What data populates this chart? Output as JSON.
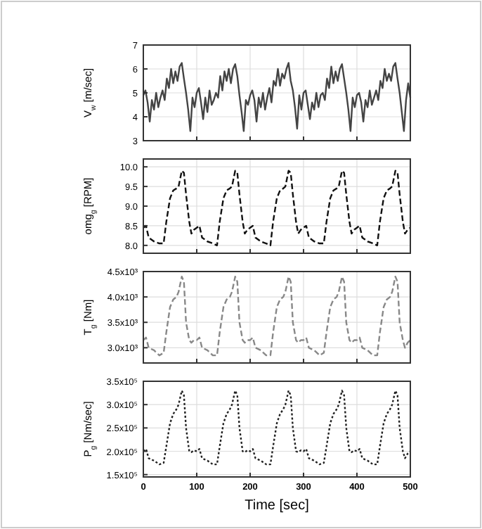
{
  "chart_data": [
    {
      "type": "line",
      "ylabel": "V$_{w}$ [m/sec]",
      "xlim": [
        0,
        500
      ],
      "xticks": [
        0,
        100,
        200,
        300,
        400,
        500
      ],
      "ylim": [
        3,
        7
      ],
      "yticks": [
        3,
        4,
        5,
        6,
        7
      ],
      "grid": true,
      "tick_labels": "y",
      "line_style": "solid",
      "x": [
        0,
        4,
        8,
        12,
        16,
        20,
        24,
        28,
        32,
        36,
        40,
        44,
        48,
        52,
        56,
        60,
        64,
        68,
        72,
        76,
        80,
        84,
        88,
        92,
        96,
        100,
        104,
        108,
        112,
        116,
        120,
        124,
        128,
        132,
        136,
        140,
        144,
        148,
        152,
        156,
        160,
        164,
        168,
        172,
        176,
        180,
        184,
        188,
        192,
        196,
        200,
        204,
        208,
        212,
        216,
        220,
        224,
        228,
        232,
        236,
        240,
        244,
        248,
        252,
        256,
        260,
        264,
        268,
        272,
        276,
        280,
        284,
        288,
        292,
        296,
        300,
        304,
        308,
        312,
        316,
        320,
        324,
        328,
        332,
        336,
        340,
        344,
        348,
        352,
        356,
        360,
        364,
        368,
        372,
        376,
        380,
        384,
        388,
        392,
        396,
        400,
        404,
        408,
        412,
        416,
        420,
        424,
        428,
        432,
        436,
        440,
        444,
        448,
        452,
        456,
        460,
        464,
        468,
        472,
        476,
        480,
        484,
        488,
        492,
        496,
        500
      ],
      "series": [
        {
          "color": "#444444",
          "values": [
            4.9,
            5.1,
            4.6,
            3.8,
            4.7,
            4.3,
            5.0,
            4.4,
            4.8,
            5.1,
            4.7,
            5.6,
            5.2,
            6.0,
            5.4,
            5.9,
            5.5,
            6.1,
            6.25,
            5.6,
            5.0,
            4.3,
            3.4,
            4.8,
            4.4,
            5.0,
            5.2,
            4.6,
            3.9,
            4.8,
            4.2,
            5.1,
            4.5,
            4.7,
            5.0,
            4.8,
            5.7,
            5.1,
            5.9,
            5.5,
            6.0,
            5.4,
            6.0,
            6.2,
            5.7,
            4.9,
            4.2,
            3.4,
            4.7,
            4.5,
            4.9,
            5.1,
            4.7,
            3.8,
            4.8,
            4.4,
            5.0,
            4.3,
            4.8,
            5.2,
            4.6,
            5.5,
            5.3,
            6.0,
            5.3,
            5.8,
            5.6,
            6.0,
            6.25,
            5.5,
            5.1,
            4.4,
            3.5,
            4.9,
            4.3,
            5.0,
            5.1,
            4.5,
            3.9,
            4.6,
            4.3,
            5.0,
            4.4,
            4.9,
            5.0,
            4.7,
            5.6,
            5.2,
            6.1,
            5.4,
            5.9,
            5.5,
            6.0,
            6.2,
            5.6,
            5.0,
            4.3,
            3.4,
            4.8,
            4.4,
            4.9,
            5.0,
            4.6,
            3.8,
            4.7,
            4.4,
            5.1,
            4.5,
            4.8,
            5.1,
            4.7,
            5.5,
            5.2,
            6.0,
            5.5,
            5.8,
            5.5,
            6.1,
            6.25,
            5.6,
            5.0,
            4.2,
            3.4,
            4.7,
            5.4,
            4.8
          ]
        }
      ]
    },
    {
      "type": "line",
      "ylabel": "omg$_{g}$ [RPM]",
      "xlim": [
        0,
        500
      ],
      "xticks": [
        0,
        100,
        200,
        300,
        400,
        500
      ],
      "ylim": [
        7.8,
        10.2
      ],
      "yticks": [
        {
          "value": 8,
          "label": "8.0"
        },
        {
          "value": 8.5,
          "label": "8.5"
        },
        {
          "value": 9,
          "label": "9.0"
        },
        {
          "value": 9.5,
          "label": "9.5"
        },
        {
          "value": 10,
          "label": "10.0"
        }
      ],
      "grid": true,
      "tick_labels": "y",
      "line_style": "dashed",
      "x": [
        0,
        5,
        10,
        20,
        30,
        38,
        43,
        50,
        56,
        62,
        66,
        72,
        76,
        80,
        86,
        90,
        95,
        100,
        105,
        110,
        120,
        130,
        138,
        143,
        150,
        156,
        162,
        166,
        172,
        176,
        180,
        186,
        190,
        195,
        200,
        205,
        210,
        220,
        230,
        238,
        243,
        250,
        256,
        262,
        266,
        272,
        276,
        280,
        286,
        290,
        295,
        300,
        305,
        310,
        320,
        330,
        338,
        343,
        350,
        356,
        362,
        366,
        372,
        376,
        380,
        386,
        390,
        395,
        400,
        405,
        410,
        420,
        430,
        438,
        443,
        450,
        456,
        462,
        466,
        472,
        476,
        480,
        486,
        490,
        495,
        500
      ],
      "series": [
        {
          "color": "#111111",
          "values": [
            8.45,
            8.5,
            8.2,
            8.1,
            8.05,
            8.05,
            8.6,
            9.2,
            9.4,
            9.45,
            9.5,
            9.9,
            9.85,
            9.3,
            8.6,
            8.3,
            8.4,
            8.45,
            8.5,
            8.2,
            8.1,
            8.05,
            8.0,
            8.6,
            9.2,
            9.4,
            9.45,
            9.5,
            9.9,
            9.85,
            9.3,
            8.6,
            8.3,
            8.4,
            8.45,
            8.5,
            8.2,
            8.1,
            8.05,
            8.0,
            8.6,
            9.2,
            9.4,
            9.45,
            9.5,
            9.9,
            9.85,
            9.3,
            8.6,
            8.3,
            8.4,
            8.45,
            8.5,
            8.2,
            8.1,
            8.05,
            8.05,
            8.6,
            9.2,
            9.4,
            9.45,
            9.5,
            9.9,
            9.85,
            9.3,
            8.6,
            8.3,
            8.4,
            8.45,
            8.5,
            8.2,
            8.1,
            8.05,
            8.0,
            8.6,
            9.2,
            9.4,
            9.45,
            9.5,
            9.9,
            9.85,
            9.3,
            8.6,
            8.3,
            8.4,
            8.45
          ]
        }
      ]
    },
    {
      "type": "line",
      "ylabel": "T$_{g}$ [Nm]",
      "xlim": [
        0,
        500
      ],
      "xticks": [
        0,
        100,
        200,
        300,
        400,
        500
      ],
      "ylim": [
        2700,
        4500
      ],
      "yticks": [
        {
          "value": 3000,
          "label": "3.0x10³"
        },
        {
          "value": 3500,
          "label": "3.5x10³"
        },
        {
          "value": 4000,
          "label": "4.0x10³"
        },
        {
          "value": 4500,
          "label": "4.5x10³"
        }
      ],
      "grid": true,
      "tick_labels": "y",
      "line_style": "dashed",
      "x": [
        0,
        5,
        10,
        20,
        30,
        38,
        43,
        50,
        56,
        62,
        66,
        72,
        76,
        80,
        86,
        90,
        95,
        100,
        105,
        110,
        120,
        130,
        138,
        143,
        150,
        156,
        162,
        166,
        172,
        176,
        180,
        186,
        190,
        195,
        200,
        205,
        210,
        220,
        230,
        238,
        243,
        250,
        256,
        262,
        266,
        272,
        276,
        280,
        286,
        290,
        295,
        300,
        305,
        310,
        320,
        330,
        338,
        343,
        350,
        356,
        362,
        366,
        372,
        376,
        380,
        386,
        390,
        395,
        400,
        405,
        410,
        420,
        430,
        438,
        443,
        450,
        456,
        462,
        466,
        472,
        476,
        480,
        486,
        490,
        495,
        500
      ],
      "series": [
        {
          "color": "#888888",
          "values": [
            3150,
            3200,
            3000,
            2950,
            2850,
            2900,
            3300,
            3800,
            3950,
            4000,
            4100,
            4400,
            4300,
            3500,
            3150,
            3100,
            3150,
            3150,
            3200,
            3000,
            2950,
            2850,
            2850,
            3300,
            3800,
            3950,
            4000,
            4100,
            4400,
            4300,
            3500,
            3150,
            3100,
            3150,
            3150,
            3200,
            3000,
            2950,
            2850,
            2850,
            3300,
            3800,
            3950,
            4000,
            4100,
            4400,
            4300,
            3500,
            3150,
            3100,
            3150,
            3150,
            3200,
            3000,
            2950,
            2850,
            2900,
            3300,
            3800,
            3950,
            4000,
            4100,
            4400,
            4300,
            3500,
            3150,
            3100,
            3150,
            3150,
            3200,
            3000,
            2950,
            2850,
            2850,
            3300,
            3800,
            3950,
            4000,
            4100,
            4400,
            4300,
            3500,
            3150,
            3000,
            3100,
            3150
          ]
        }
      ]
    },
    {
      "type": "line",
      "xlabel": "Time [sec]",
      "ylabel": "P$_{g}$ [Nm/sec]",
      "xlim": [
        0,
        500
      ],
      "xticks": [
        0,
        100,
        200,
        300,
        400,
        500
      ],
      "ylim": [
        145000,
        350000
      ],
      "yticks": [
        {
          "value": 150000,
          "label": "1.5x10⁵"
        },
        {
          "value": 200000,
          "label": "2.0x10⁵"
        },
        {
          "value": 250000,
          "label": "2.5x10⁵"
        },
        {
          "value": 300000,
          "label": "3.0x10⁵"
        },
        {
          "value": 350000,
          "label": "3.5x10⁵"
        }
      ],
      "grid": true,
      "line_style": "dotted",
      "x": [
        0,
        5,
        10,
        20,
        30,
        38,
        43,
        50,
        56,
        62,
        66,
        72,
        76,
        80,
        86,
        90,
        95,
        100,
        105,
        110,
        120,
        130,
        138,
        143,
        150,
        156,
        162,
        166,
        172,
        176,
        180,
        186,
        190,
        195,
        200,
        205,
        210,
        220,
        230,
        238,
        243,
        250,
        256,
        262,
        266,
        272,
        276,
        280,
        286,
        290,
        295,
        300,
        305,
        310,
        320,
        330,
        338,
        343,
        350,
        356,
        362,
        366,
        372,
        376,
        380,
        386,
        390,
        395,
        400,
        405,
        410,
        420,
        430,
        438,
        443,
        450,
        456,
        462,
        466,
        472,
        476,
        480,
        486,
        490,
        495,
        500
      ],
      "series": [
        {
          "color": "#222222",
          "values": [
            200000,
            205000,
            185000,
            180000,
            172000,
            175000,
            210000,
            260000,
            280000,
            290000,
            300000,
            330000,
            320000,
            250000,
            200000,
            198000,
            202000,
            200000,
            205000,
            185000,
            180000,
            172000,
            172000,
            210000,
            260000,
            280000,
            290000,
            300000,
            330000,
            320000,
            250000,
            200000,
            198000,
            202000,
            200000,
            205000,
            185000,
            180000,
            172000,
            172000,
            210000,
            260000,
            280000,
            290000,
            300000,
            330000,
            320000,
            250000,
            200000,
            198000,
            202000,
            200000,
            205000,
            185000,
            180000,
            172000,
            175000,
            210000,
            260000,
            280000,
            290000,
            300000,
            330000,
            320000,
            250000,
            200000,
            198000,
            202000,
            200000,
            205000,
            185000,
            180000,
            172000,
            172000,
            210000,
            260000,
            280000,
            290000,
            300000,
            330000,
            320000,
            250000,
            200000,
            185000,
            195000,
            200000
          ]
        }
      ]
    }
  ]
}
